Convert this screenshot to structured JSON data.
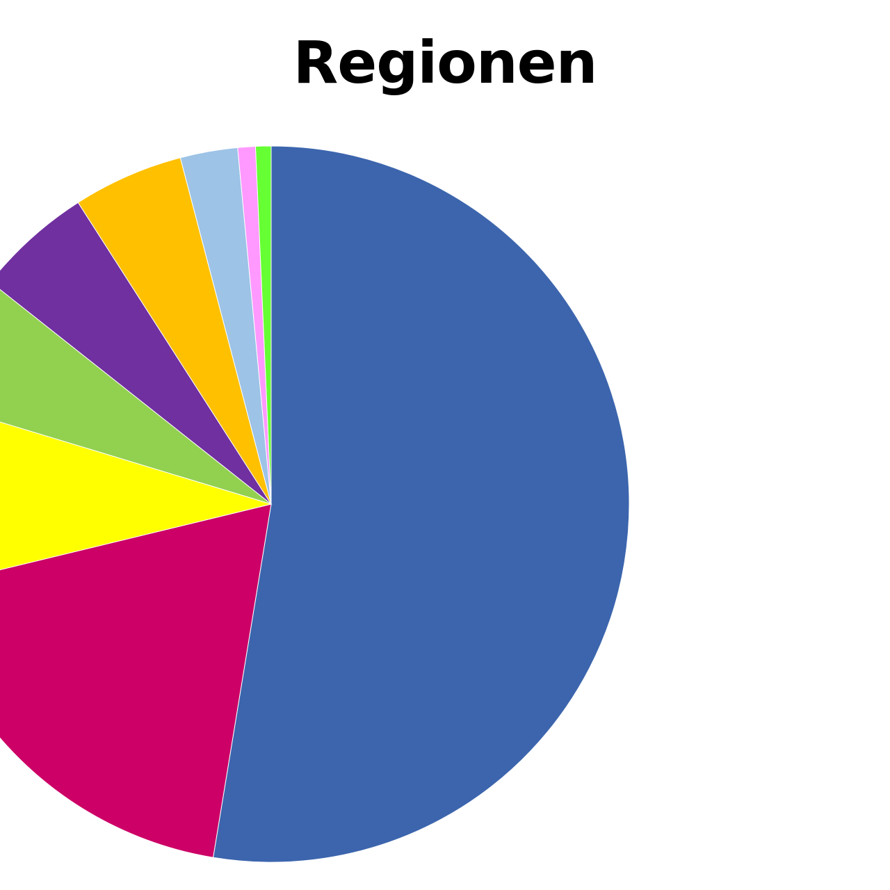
{
  "chart_data": {
    "type": "pie",
    "title": "Regionen",
    "start_angle_deg": 0,
    "direction": "clockwise",
    "legend": "none",
    "slices": [
      {
        "value": 52.8,
        "color": "#3C65AD"
      },
      {
        "value": 18.7,
        "color": "#CC0066"
      },
      {
        "value": 8.5,
        "color": "#FFFF00"
      },
      {
        "value": 6.0,
        "color": "#92D050"
      },
      {
        "value": 5.3,
        "color": "#7030A0"
      },
      {
        "value": 5.0,
        "color": "#FFC000"
      },
      {
        "value": 2.6,
        "color": "#9DC3E6"
      },
      {
        "value": 0.8,
        "color": "#FF99FF"
      },
      {
        "value": 0.7,
        "color": "#66FF33"
      }
    ]
  }
}
